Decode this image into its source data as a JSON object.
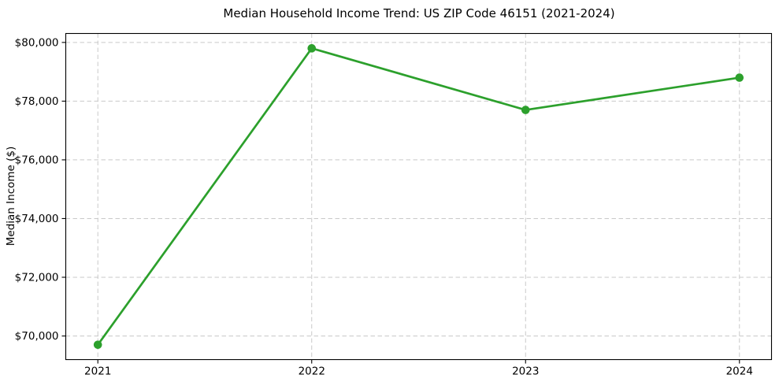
{
  "chart_data": {
    "type": "line",
    "title": "Median Household Income Trend: US ZIP Code 46151 (2021-2024)",
    "xlabel": "",
    "ylabel": "Median Income ($)",
    "x": [
      2021,
      2022,
      2023,
      2024
    ],
    "x_tick_labels": [
      "2021",
      "2022",
      "2023",
      "2024"
    ],
    "series": [
      {
        "name": "Median household income",
        "values": [
          69700,
          79800,
          77700,
          78800
        ]
      }
    ],
    "yticks": [
      70000,
      72000,
      74000,
      76000,
      78000,
      80000
    ],
    "ytick_labels": [
      "$70,000",
      "$72,000",
      "$74,000",
      "$76,000",
      "$78,000",
      "$80,000"
    ],
    "ylim": [
      69195,
      80305
    ],
    "xlim": [
      2020.85,
      2024.15
    ],
    "grid": "dashed-both-axes",
    "legend": "none",
    "marker": "filled-circle",
    "colors": {
      "line": "#2ca02c",
      "marker": "#2ca02c",
      "grid": "#c9c9c9",
      "axis": "#000000",
      "text": "#000000",
      "background": "#ffffff"
    }
  }
}
